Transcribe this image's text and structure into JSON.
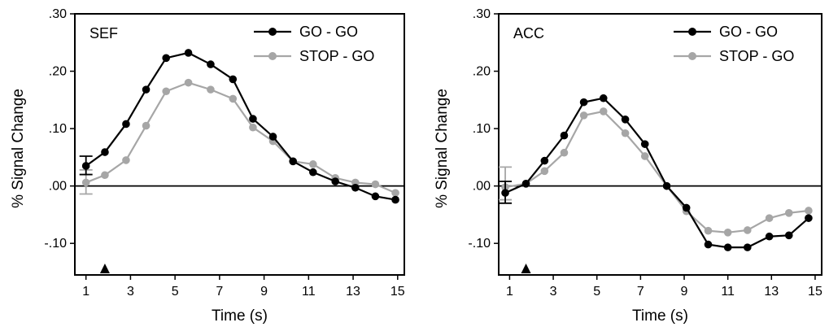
{
  "chart_data": [
    {
      "type": "line",
      "panel_label": "SEF",
      "xlabel": "Time (s)",
      "ylabel": "% Signal Change",
      "xlim": [
        0.5,
        15.3
      ],
      "ylim": [
        -0.155,
        0.3
      ],
      "x_ticks": [
        1,
        3,
        5,
        7,
        9,
        11,
        13,
        15
      ],
      "x_tick_labels": [
        "1",
        "3",
        "5",
        "7",
        "9",
        "11",
        "13",
        "15"
      ],
      "y_ticks": [
        0.3,
        0.2,
        0.1,
        0.0,
        -0.1
      ],
      "y_tick_labels": [
        ".30",
        ".20",
        ".10",
        ".00",
        "-.10"
      ],
      "zero_line": true,
      "grid": false,
      "legend_position": "top-right",
      "event_marker_x": 1.85,
      "series": [
        {
          "name": "GO - GO",
          "color": "#000000",
          "x": [
            1.0,
            1.85,
            2.8,
            3.7,
            4.6,
            5.6,
            6.6,
            7.6,
            8.5,
            9.4,
            10.3,
            11.2,
            12.2,
            13.1,
            14.0,
            14.9
          ],
          "y": [
            0.035,
            0.059,
            0.108,
            0.168,
            0.223,
            0.232,
            0.212,
            0.186,
            0.117,
            0.086,
            0.043,
            0.024,
            0.008,
            -0.003,
            -0.018,
            -0.024
          ],
          "error_bar_at_first": [
            0.02,
            0.052
          ]
        },
        {
          "name": "STOP - GO",
          "color": "#a6a6a6",
          "x": [
            1.0,
            1.85,
            2.8,
            3.7,
            4.6,
            5.6,
            6.6,
            7.6,
            8.5,
            9.4,
            10.3,
            11.2,
            12.2,
            13.1,
            14.0,
            14.9
          ],
          "y": [
            0.006,
            0.019,
            0.045,
            0.105,
            0.165,
            0.18,
            0.168,
            0.152,
            0.102,
            0.078,
            0.043,
            0.038,
            0.014,
            0.006,
            0.003,
            -0.012
          ],
          "error_bar_at_first": [
            -0.014,
            0.028
          ]
        }
      ]
    },
    {
      "type": "line",
      "panel_label": "ACC",
      "xlabel": "Time (s)",
      "ylabel": "% Signal Change",
      "xlim": [
        0.5,
        15.3
      ],
      "ylim": [
        -0.155,
        0.3
      ],
      "x_ticks": [
        1,
        3,
        5,
        7,
        9,
        11,
        13,
        15
      ],
      "x_tick_labels": [
        "1",
        "3",
        "5",
        "7",
        "9",
        "11",
        "13",
        "15"
      ],
      "y_ticks": [
        0.3,
        0.2,
        0.1,
        0.0,
        -0.1
      ],
      "y_tick_labels": [
        ".30",
        ".20",
        ".10",
        ".00",
        "-.10"
      ],
      "zero_line": true,
      "grid": false,
      "legend_position": "top-right",
      "event_marker_x": 1.75,
      "series": [
        {
          "name": "GO - GO",
          "color": "#000000",
          "x": [
            0.8,
            1.75,
            2.6,
            3.5,
            4.4,
            5.3,
            6.3,
            7.2,
            8.2,
            9.1,
            10.1,
            11.0,
            11.9,
            12.9,
            13.8,
            14.7
          ],
          "y": [
            -0.012,
            0.004,
            0.044,
            0.088,
            0.146,
            0.153,
            0.116,
            0.073,
            0.0,
            -0.038,
            -0.102,
            -0.107,
            -0.107,
            -0.088,
            -0.086,
            -0.056
          ],
          "error_bar_at_first": [
            -0.03,
            0.008
          ]
        },
        {
          "name": "STOP - GO",
          "color": "#a6a6a6",
          "x": [
            0.8,
            1.75,
            2.6,
            3.5,
            4.4,
            5.3,
            6.3,
            7.2,
            8.2,
            9.1,
            10.1,
            11.0,
            11.9,
            12.9,
            13.8,
            14.7
          ],
          "y": [
            -0.002,
            0.004,
            0.026,
            0.058,
            0.123,
            0.13,
            0.092,
            0.052,
            0.0,
            -0.044,
            -0.078,
            -0.081,
            -0.077,
            -0.056,
            -0.047,
            -0.043
          ],
          "error_bar_at_first": [
            -0.024,
            0.033
          ]
        }
      ]
    }
  ]
}
